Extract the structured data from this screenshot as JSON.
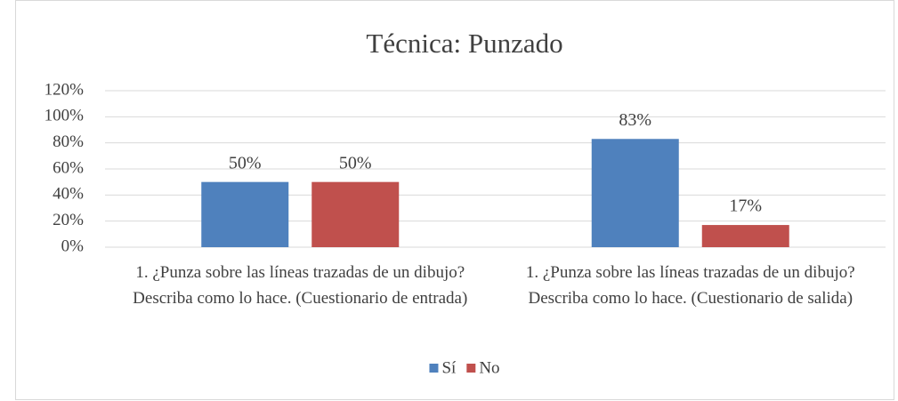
{
  "chart_data": {
    "type": "bar",
    "title": "Técnica: Punzado",
    "categories": [
      "1. ¿Punza sobre las líneas trazadas de un dibujo? Describa como lo hace. (Cuestionario de entrada)",
      "1. ¿Punza sobre las líneas trazadas de un dibujo? Describa como lo hace. (Cuestionario de salida)"
    ],
    "series": [
      {
        "name": "Sí",
        "color": "#4f81bd",
        "values": [
          50,
          83
        ],
        "value_labels": [
          "50%",
          "83%"
        ]
      },
      {
        "name": "No",
        "color": "#c0504d",
        "values": [
          50,
          17
        ],
        "value_labels": [
          "50%",
          "17%"
        ]
      }
    ],
    "ylim": [
      0,
      120
    ],
    "yticks": [
      {
        "value": 0,
        "label": "0%"
      },
      {
        "value": 20,
        "label": "20%"
      },
      {
        "value": 40,
        "label": "40%"
      },
      {
        "value": 60,
        "label": "60%"
      },
      {
        "value": 80,
        "label": "80%"
      },
      {
        "value": 100,
        "label": "100%"
      },
      {
        "value": 120,
        "label": "120%"
      }
    ],
    "grid": true,
    "legend": "bottom"
  }
}
